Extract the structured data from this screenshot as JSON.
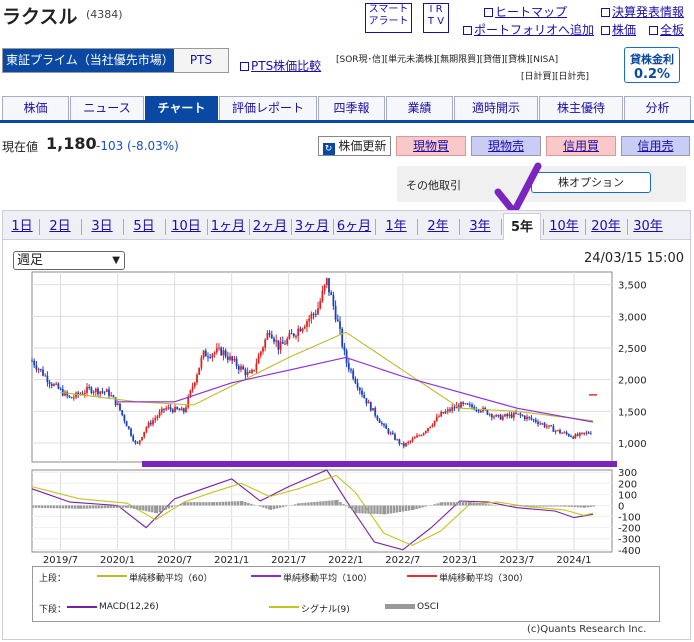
{
  "header": {
    "title": "ラクスル",
    "code": "(4384)",
    "smart_alert_1": "スマート",
    "smart_alert_2": "アラート",
    "ir_1": "I R",
    "ir_2": "T V",
    "links": [
      "ヒートマップ",
      "決算発表情報",
      "ポートフォリオへ追加",
      "株価",
      "全板"
    ]
  },
  "market": {
    "selected": "東証プライム（当社優先市場）",
    "pts": "PTS",
    "pts_compare": "PTS株価比較"
  },
  "tags": {
    "row1": [
      "[SOR現･信]",
      "[単元未満株]",
      "[無期限買]",
      "[貸借]",
      "[貸株]",
      "[NISA]"
    ],
    "row2": [
      "[日計買]",
      "[日計売]"
    ],
    "kinri_label": "貸株金利",
    "kinri_value": "0.2%"
  },
  "tabs": [
    "株価",
    "ニュース",
    "チャート",
    "評価レポート",
    "四季報",
    "業績",
    "適時開示",
    "株主優待",
    "分析"
  ],
  "active_tab": "チャート",
  "quote": {
    "label": "現在値",
    "price": "1,180",
    "change": "-103 (-8.03%)"
  },
  "buttons": {
    "update": "株価更新",
    "genbutsu_buy": "現物買",
    "genbutsu_sell": "現物売",
    "shinyo_buy": "信用買",
    "shinyo_sell": "信用売"
  },
  "other_trade": {
    "label": "その他取引",
    "option": "株オプション"
  },
  "periods": [
    "1日",
    "2日",
    "3日",
    "5日",
    "10日",
    "1ヶ月",
    "2ヶ月",
    "3ヶ月",
    "6ヶ月",
    "1年",
    "2年",
    "3年",
    "5年",
    "10年",
    "20年",
    "30年"
  ],
  "active_period": "5年",
  "chart_controls": {
    "interval": "週足",
    "timestamp": "24/03/15 15:00"
  },
  "chart_data": {
    "type": "line",
    "x_ticks": [
      "2019/7",
      "2020/1",
      "2020/7",
      "2021/1",
      "2021/7",
      "2022/1",
      "2022/7",
      "2023/1",
      "2023/7",
      "2024/1"
    ],
    "price_axis": {
      "ticks": [
        "3,500",
        "3,000",
        "2,500",
        "2,000",
        "1,500",
        "1,000"
      ],
      "ylim": [
        700,
        3700
      ]
    },
    "osc_axis": {
      "ticks": [
        "300",
        "200",
        "100",
        "0",
        "-100",
        "-200",
        "-300",
        "-400"
      ],
      "ylim": [
        -420,
        320
      ]
    },
    "price_points": [
      [
        "2019/4",
        2300
      ],
      [
        "2019/6",
        1950
      ],
      [
        "2019/8",
        1700
      ],
      [
        "2019/10",
        1850
      ],
      [
        "2019/12",
        1800
      ],
      [
        "2020/1",
        1600
      ],
      [
        "2020/3",
        950
      ],
      [
        "2020/4",
        1250
      ],
      [
        "2020/6",
        1550
      ],
      [
        "2020/8",
        1500
      ],
      [
        "2020/10",
        2400
      ],
      [
        "2020/12",
        2450
      ],
      [
        "2021/1",
        2300
      ],
      [
        "2021/3",
        2050
      ],
      [
        "2021/5",
        2800
      ],
      [
        "2021/6",
        2500
      ],
      [
        "2021/8",
        2800
      ],
      [
        "2021/10",
        3100
      ],
      [
        "2021/11",
        3550
      ],
      [
        "2021/12",
        3000
      ],
      [
        "2022/1",
        2300
      ],
      [
        "2022/3",
        1700
      ],
      [
        "2022/5",
        1250
      ],
      [
        "2022/7",
        950
      ],
      [
        "2022/9",
        1150
      ],
      [
        "2022/11",
        1450
      ],
      [
        "2023/1",
        1600
      ],
      [
        "2023/3",
        1550
      ],
      [
        "2023/5",
        1400
      ],
      [
        "2023/7",
        1450
      ],
      [
        "2023/9",
        1350
      ],
      [
        "2023/11",
        1200
      ],
      [
        "2024/1",
        1100
      ],
      [
        "2024/3",
        1180
      ]
    ],
    "series": [
      {
        "name": "単純移動平均 (60)",
        "color": "#bcbc2a",
        "points": [
          [
            "2019/7",
            1800
          ],
          [
            "2020/3",
            1650
          ],
          [
            "2020/9",
            1600
          ],
          [
            "2021/1",
            1900
          ],
          [
            "2021/7",
            2350
          ],
          [
            "2022/1",
            2750
          ],
          [
            "2022/7",
            2150
          ],
          [
            "2023/1",
            1550
          ],
          [
            "2023/7",
            1500
          ],
          [
            "2024/3",
            1350
          ]
        ]
      },
      {
        "name": "単純移動平均 (100)",
        "color": "#8a2be2",
        "points": [
          [
            "2020/1",
            1650
          ],
          [
            "2020/7",
            1650
          ],
          [
            "2021/1",
            1950
          ],
          [
            "2021/7",
            2150
          ],
          [
            "2022/1",
            2350
          ],
          [
            "2022/7",
            2050
          ],
          [
            "2023/1",
            1800
          ],
          [
            "2023/7",
            1550
          ],
          [
            "2024/3",
            1330
          ]
        ]
      },
      {
        "name": "単純移動平均 (300)",
        "color": "#e03030",
        "points": [
          [
            "2024/3",
            1760
          ]
        ]
      },
      {
        "name": "MACD(12,26)",
        "color": "#7a1fa0",
        "points": [
          [
            "2019/4",
            150
          ],
          [
            "2019/8",
            30
          ],
          [
            "2020/1",
            0
          ],
          [
            "2020/4",
            -200
          ],
          [
            "2020/7",
            60
          ],
          [
            "2020/10",
            150
          ],
          [
            "2021/1",
            240
          ],
          [
            "2021/4",
            40
          ],
          [
            "2021/7",
            170
          ],
          [
            "2021/11",
            320
          ],
          [
            "2022/1",
            50
          ],
          [
            "2022/4",
            -330
          ],
          [
            "2022/7",
            -400
          ],
          [
            "2022/10",
            -200
          ],
          [
            "2023/1",
            40
          ],
          [
            "2023/4",
            30
          ],
          [
            "2023/7",
            -20
          ],
          [
            "2023/11",
            -50
          ],
          [
            "2024/1",
            -110
          ],
          [
            "2024/3",
            -80
          ]
        ]
      },
      {
        "name": "シグナル(9)",
        "color": "#c4c41e",
        "points": [
          [
            "2019/4",
            170
          ],
          [
            "2019/9",
            60
          ],
          [
            "2020/2",
            20
          ],
          [
            "2020/5",
            -130
          ],
          [
            "2020/8",
            30
          ],
          [
            "2020/11",
            120
          ],
          [
            "2021/2",
            200
          ],
          [
            "2021/5",
            80
          ],
          [
            "2021/8",
            150
          ],
          [
            "2021/12",
            270
          ],
          [
            "2022/2",
            120
          ],
          [
            "2022/5",
            -250
          ],
          [
            "2022/8",
            -360
          ],
          [
            "2022/11",
            -230
          ],
          [
            "2023/2",
            10
          ],
          [
            "2023/5",
            30
          ],
          [
            "2023/8",
            -10
          ],
          [
            "2023/12",
            -40
          ],
          [
            "2024/2",
            -90
          ],
          [
            "2024/3",
            -70
          ]
        ]
      },
      {
        "name": "OSCI",
        "color": "#999999",
        "points": [
          [
            "2019/4",
            -20
          ],
          [
            "2019/9",
            -30
          ],
          [
            "2020/2",
            -20
          ],
          [
            "2020/5",
            -70
          ],
          [
            "2020/8",
            30
          ],
          [
            "2020/11",
            30
          ],
          [
            "2021/2",
            40
          ],
          [
            "2021/5",
            -40
          ],
          [
            "2021/8",
            20
          ],
          [
            "2021/12",
            50
          ],
          [
            "2022/2",
            -70
          ],
          [
            "2022/5",
            -80
          ],
          [
            "2022/8",
            -40
          ],
          [
            "2022/11",
            30
          ],
          [
            "2023/2",
            30
          ],
          [
            "2023/5",
            0
          ],
          [
            "2023/8",
            -10
          ],
          [
            "2023/12",
            -10
          ],
          [
            "2024/2",
            -20
          ],
          [
            "2024/3",
            -10
          ]
        ]
      }
    ]
  },
  "legend": {
    "upper": "上段：",
    "lower": "下段：",
    "items": [
      "単純移動平均（60）",
      "単純移動平均（100）",
      "単純移動平均（300）",
      "MACD(12,26)",
      "シグナル(9)",
      "OSCI"
    ]
  },
  "copyright": "(c)Quants Research Inc.",
  "colors": {
    "brand_blue": "#0a49a3",
    "annotation_purple": "#7a25c0",
    "candle_up": "#e02020",
    "candle_down": "#1a40c0"
  }
}
